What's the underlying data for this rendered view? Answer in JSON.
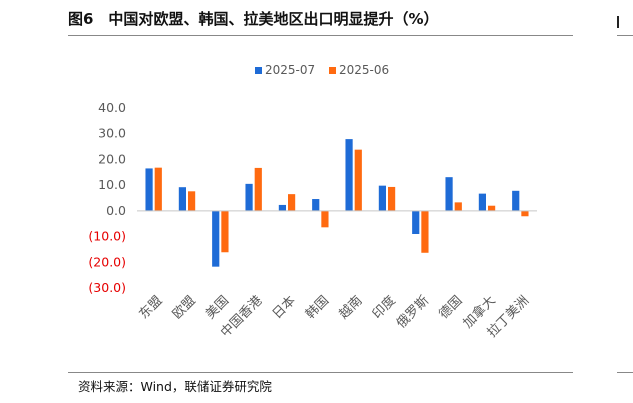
{
  "header": {
    "title": "图6　中国对欧盟、韩国、拉美地区出口明显提升（%）"
  },
  "footer": {
    "source": "资料来源：Wind，联储证券研究院"
  },
  "colors": {
    "series1": "#1E6BD6",
    "series2": "#FF6A10",
    "negative_tick": "#E60000",
    "axis_text": "#595959"
  },
  "chart_data": {
    "type": "bar",
    "title": "中国对欧盟、韩国、拉美地区出口明显提升（%）",
    "categories": [
      "东盟",
      "欧盟",
      "美国",
      "中国香港",
      "日本",
      "韩国",
      "越南",
      "印度",
      "俄罗斯",
      "德国",
      "加拿大",
      "拉丁美洲"
    ],
    "series": [
      {
        "name": "2025-07",
        "values": [
          16.5,
          9.2,
          -21.7,
          10.5,
          2.3,
          4.6,
          27.9,
          9.8,
          -9.0,
          13.1,
          6.7,
          7.8
        ]
      },
      {
        "name": "2025-06",
        "values": [
          16.8,
          7.6,
          -16.1,
          16.7,
          6.5,
          -6.4,
          23.8,
          9.3,
          -16.3,
          3.3,
          2.0,
          -2.1
        ]
      }
    ],
    "ylim": [
      -30,
      40
    ],
    "yticks": [
      40,
      30,
      20,
      10,
      0,
      -10,
      -20,
      -30
    ],
    "ytick_labels": [
      "40.0",
      "30.0",
      "20.0",
      "10.0",
      "0.0",
      "(10.0)",
      "(20.0)",
      "(30.0)"
    ],
    "xlabel": "",
    "ylabel": "",
    "legend_position": "top-center",
    "grid": false
  }
}
